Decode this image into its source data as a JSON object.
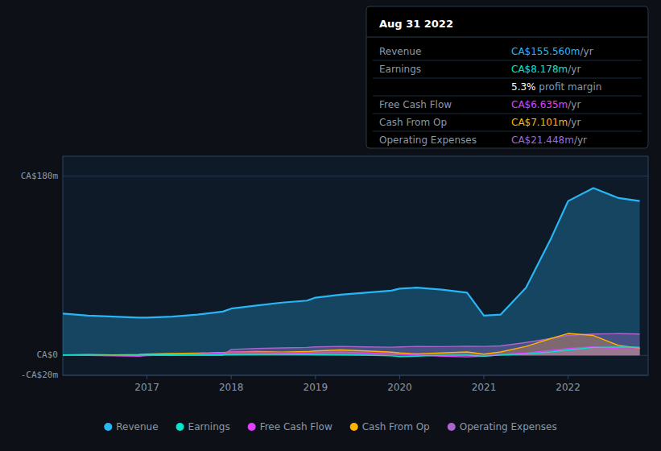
{
  "chart_data": {
    "type": "area",
    "x": [
      2016.0,
      2016.3,
      2016.6,
      2016.9,
      2017.0,
      2017.3,
      2017.6,
      2017.9,
      2018.0,
      2018.3,
      2018.6,
      2018.9,
      2019.0,
      2019.3,
      2019.6,
      2019.9,
      2020.0,
      2020.2,
      2020.5,
      2020.8,
      2021.0,
      2021.2,
      2021.5,
      2021.8,
      2022.0,
      2022.3,
      2022.6,
      2022.85
    ],
    "series": [
      {
        "name": "Revenue",
        "color": "#29b6f6",
        "values": [
          42,
          40,
          39,
          38,
          38,
          39,
          41,
          44,
          47,
          50,
          53,
          55,
          58,
          61,
          63,
          65,
          67,
          68,
          66,
          63,
          40,
          41,
          68,
          118,
          155,
          168,
          158,
          155
        ]
      },
      {
        "name": "Earnings",
        "color": "#00e5cc",
        "values": [
          0.5,
          0.3,
          0.1,
          0.2,
          0.3,
          0.4,
          0.5,
          0.6,
          0.8,
          1.0,
          1.2,
          1.0,
          0.8,
          0.5,
          0.2,
          -0.5,
          -1.2,
          -0.8,
          0.1,
          0.2,
          -0.8,
          0.3,
          1.5,
          3.5,
          5.5,
          8,
          8.3,
          8.2
        ]
      },
      {
        "name": "Free Cash Flow",
        "color": "#e040fb",
        "values": [
          0.1,
          0.0,
          -0.5,
          -0.8,
          -0.3,
          0.5,
          1.5,
          2.5,
          3.5,
          3.2,
          2.8,
          2.5,
          2.8,
          3.2,
          2.5,
          1.5,
          1.0,
          0.3,
          -0.8,
          -1.5,
          -0.8,
          0.8,
          2.5,
          5,
          7,
          8.5,
          6.8,
          6.6
        ]
      },
      {
        "name": "Cash From Op",
        "color": "#ffb300",
        "values": [
          0.5,
          0.8,
          0.5,
          0.8,
          1.2,
          1.8,
          2.2,
          2.8,
          3.2,
          3.8,
          3.2,
          3.8,
          4.5,
          5.5,
          4.5,
          3.2,
          2.5,
          1.5,
          2.5,
          3.5,
          1.2,
          3.5,
          9,
          17,
          22,
          20,
          10,
          7.1
        ]
      },
      {
        "name": "Operating Expenses",
        "color": "#aa66cc",
        "values": [
          0.0,
          0.0,
          0.0,
          0.0,
          0.0,
          0.0,
          0.0,
          0.0,
          6.0,
          7.0,
          7.5,
          8.0,
          8.5,
          9.0,
          8.5,
          8.2,
          8.5,
          9.0,
          8.8,
          9.2,
          9.0,
          9.5,
          13,
          17,
          20,
          21.5,
          21.8,
          21.4
        ]
      }
    ],
    "xlim": [
      2016.0,
      2022.95
    ],
    "xticks": [
      2017,
      2018,
      2019,
      2020,
      2021,
      2022
    ],
    "ylim": [
      -20,
      200
    ],
    "yticks": [
      {
        "value": -20,
        "label": "-CA$20m"
      },
      {
        "value": 0,
        "label": "CA$0"
      },
      {
        "value": 180,
        "label": "CA$180m"
      }
    ],
    "grid": true,
    "legend": "bottom",
    "annotations": [
      {
        "title": "Aug 31 2022",
        "rows": [
          {
            "label": "Revenue",
            "value": "CA$155.560m",
            "unit": "/yr",
            "color": "#29b6f6"
          },
          {
            "label": "Earnings",
            "value": "CA$8.178m",
            "unit": "/yr",
            "color": "#00e5cc"
          },
          {
            "value": "5.3%",
            "unit": " profit margin",
            "color": "#ffffff"
          },
          {
            "label": "Free Cash Flow",
            "value": "CA$6.635m",
            "unit": "/yr",
            "color": "#e040fb"
          },
          {
            "label": "Cash From Op",
            "value": "CA$7.101m",
            "unit": "/yr",
            "color": "#ffb300"
          },
          {
            "label": "Operating Expenses",
            "value": "CA$21.448m",
            "unit": "/yr",
            "color": "#aa66cc"
          }
        ]
      }
    ]
  }
}
